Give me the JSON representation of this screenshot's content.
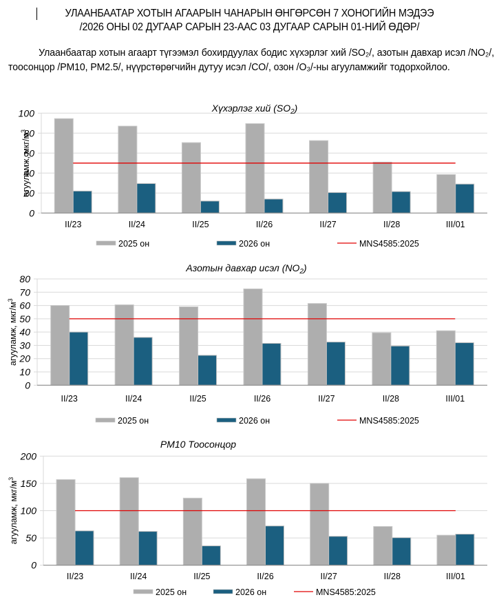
{
  "header": {
    "title_line1": "УЛААНБААТАР ХОТЫН АГААРЫН ЧАНАРЫН ӨНГӨРСӨН 7 ХОНОГИЙН МЭДЭЭ",
    "title_line2": "/2026 ОНЫ 02 ДУГААР САРЫН 23-ААС 03 ДУГААР САРЫН 01-НИЙ ӨДӨР/"
  },
  "intro": "Улаанбаатар хотын агаарт түгээмэл бохирдуулах бодис хүхэрлэг хий /SO₂/, азотын давхар исэл /NO₂/, тоосонцор /PM10, PM2.5/, нүүрстөрөгчийн дутуу исэл /CO/, озон /O₃/-ны агууламжийг тодорхойлоо.",
  "colors": {
    "series_2025": "#AEAEAE",
    "series_2026": "#1B5F80",
    "standard_line": "#E00000",
    "gridline": "#D9D9D9",
    "axis": "#898989"
  },
  "chart_data": [
    {
      "type": "bar",
      "title": "Хүхэрлэг хий (SO",
      "title_sub": "2",
      "title_end": ")",
      "ylabel": "агууламж, мкг/м",
      "ylabel_sup": "3",
      "xlabel": "",
      "categories": [
        "II/23",
        "II/24",
        "II/25",
        "II/26",
        "II/27",
        "II/28",
        "III/01"
      ],
      "ylim": [
        0,
        100
      ],
      "yticks": [
        0,
        20,
        40,
        60,
        80,
        100
      ],
      "grid": true,
      "legend_position": "bottom",
      "series": [
        {
          "name": "2025 он",
          "kind": "bar",
          "values": [
            94.5,
            87,
            70.5,
            89.5,
            72.5,
            51,
            38.5
          ]
        },
        {
          "name": "2026 он",
          "kind": "bar",
          "values": [
            22,
            29.5,
            12,
            14,
            20.5,
            21.5,
            29
          ]
        },
        {
          "name": "MNS4585:2025",
          "kind": "line",
          "values": [
            50,
            50,
            50,
            50,
            50,
            50,
            50
          ]
        }
      ]
    },
    {
      "type": "bar",
      "title": "Азотын давхар исэл (NO",
      "title_sub": "2",
      "title_end": ")",
      "ylabel": "агууламж, мкг/м",
      "ylabel_sup": "3",
      "xlabel": "",
      "categories": [
        "II/23",
        "II/24",
        "II/25",
        "II/26",
        "II/27",
        "II/28",
        "III/01"
      ],
      "ylim": [
        0,
        80
      ],
      "yticks": [
        0,
        10,
        20,
        30,
        40,
        50,
        60,
        70,
        80
      ],
      "grid": true,
      "legend_position": "bottom",
      "series": [
        {
          "name": "2025 он",
          "kind": "bar",
          "values": [
            60,
            60.5,
            59,
            72.5,
            61.5,
            39.5,
            41
          ]
        },
        {
          "name": "2026 он",
          "kind": "bar",
          "values": [
            40,
            36,
            22.5,
            31.5,
            32.5,
            29.5,
            32
          ]
        },
        {
          "name": "MNS4585:2025",
          "kind": "line",
          "values": [
            50,
            50,
            50,
            50,
            50,
            50,
            50
          ]
        }
      ]
    },
    {
      "type": "bar",
      "title": "PM10 Тоосонцор",
      "title_sub": "",
      "title_end": "",
      "ylabel": "агууламж, мкг/м",
      "ylabel_sup": "3",
      "xlabel": "",
      "categories": [
        "II/23",
        "II/24",
        "II/25",
        "II/26",
        "II/27",
        "II/28",
        "III/01"
      ],
      "ylim": [
        0,
        200
      ],
      "yticks": [
        0,
        50,
        100,
        150,
        200
      ],
      "grid": true,
      "legend_position": "bottom",
      "series": [
        {
          "name": "2025 он",
          "kind": "bar",
          "values": [
            157,
            160.5,
            123,
            158.5,
            150,
            71,
            55
          ]
        },
        {
          "name": "2026 он",
          "kind": "bar",
          "values": [
            63,
            62,
            35.5,
            72,
            53,
            50.5,
            57
          ]
        },
        {
          "name": "MNS4585:2025",
          "kind": "line",
          "values": [
            100,
            100,
            100,
            100,
            100,
            100,
            100
          ]
        }
      ]
    }
  ]
}
